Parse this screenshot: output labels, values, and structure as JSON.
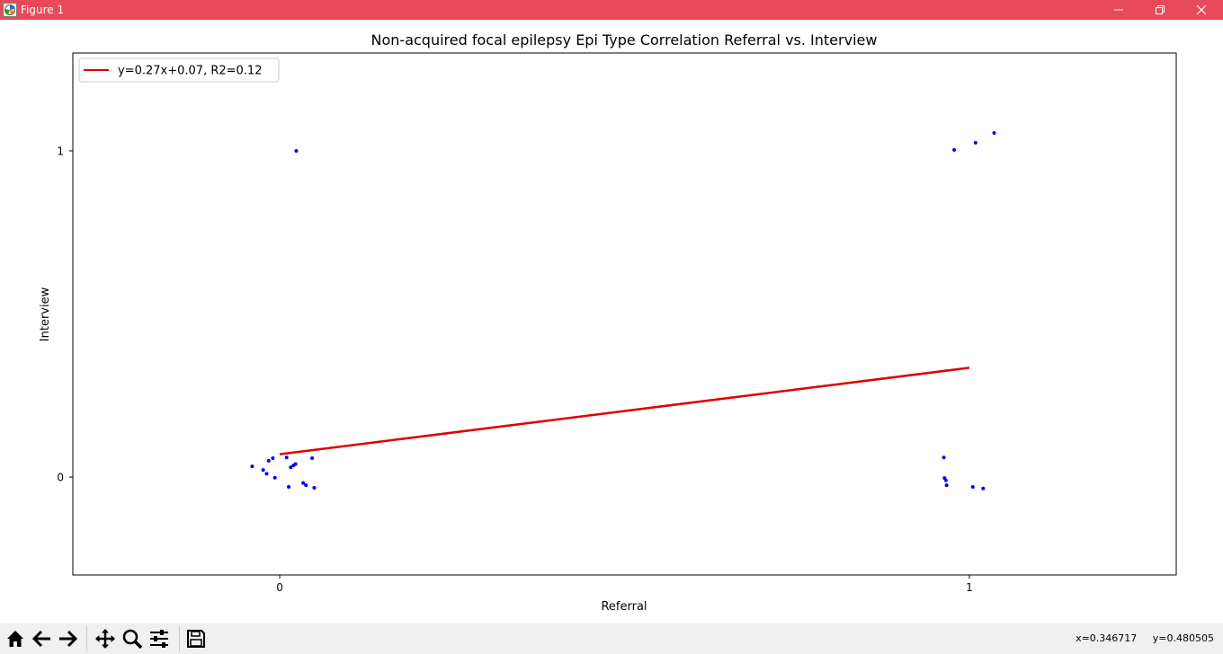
{
  "window": {
    "title": "Figure 1"
  },
  "toolbar": {
    "coords_text": "x=0.346717     y=0.480505"
  },
  "chart_data": {
    "type": "scatter",
    "title": "Non-acquired focal epilepsy Epi Type Correlation Referral vs. Interview",
    "xlabel": "Referral",
    "ylabel": "Interview",
    "xlim": [
      -0.3,
      1.3
    ],
    "ylim": [
      -0.3,
      1.3
    ],
    "xticks": [
      0,
      1
    ],
    "yticks": [
      0,
      1
    ],
    "grid": false,
    "legend_position": "upper-left",
    "points_color": "#0000ff",
    "fit_color": "#dd0000",
    "points": {
      "x": [
        -0.04,
        -0.024,
        -0.019,
        -0.016,
        -0.01,
        -0.007,
        0.01,
        0.013,
        0.016,
        0.02,
        0.023,
        0.034,
        0.038,
        0.047,
        0.05,
        0.024,
        0.963,
        0.964,
        0.966,
        0.967,
        0.978,
        1.005,
        1.009,
        1.02,
        1.036
      ],
      "y": [
        0.033,
        0.022,
        0.01,
        0.05,
        0.058,
        -0.002,
        0.06,
        -0.03,
        0.03,
        0.036,
        0.04,
        -0.018,
        -0.025,
        0.058,
        -0.033,
        1.0,
        0.06,
        -0.003,
        -0.01,
        -0.025,
        1.003,
        -0.03,
        1.025,
        -0.035,
        1.055
      ]
    },
    "series": [
      {
        "name": "y=0.27x+0.07, R2=0.12",
        "x": [
          0,
          1
        ],
        "y": [
          0.07,
          0.335
        ]
      }
    ]
  }
}
